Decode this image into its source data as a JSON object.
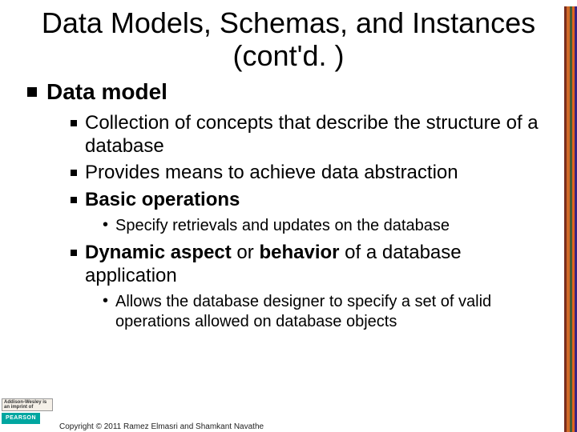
{
  "title": "Data Models, Schemas, and Instances (cont'd. )",
  "body": {
    "l1_0": "Data model",
    "l2_0": "Collection of concepts that describe the structure of a database",
    "l2_1": "Provides means to achieve data abstraction",
    "l2_2_bold": "Basic operations",
    "l3_0": "Specify retrievals and updates on the database",
    "l2_3_b1": "Dynamic aspect",
    "l2_3_mid": " or ",
    "l2_3_b2": "behavior",
    "l2_3_tail": " of a database application",
    "l3_1": "Allows the database designer to specify a set of valid operations allowed on database objects"
  },
  "copyright": "Copyright © 2011 Ramez Elmasri and Shamkant Navathe",
  "logo_aw": "Addison-Wesley is an imprint of",
  "logo_pearson": "PEARSON",
  "stripes": {
    "c1": "#7a2e1e",
    "c2": "#d06a28",
    "c3": "#455f36",
    "c4": "#e0641e",
    "c5": "#3a2482"
  },
  "style": {
    "background": "#ffffff",
    "title_fontsize": 36,
    "l1_fontsize": 28,
    "l2_fontsize": 24,
    "l3_fontsize": 20,
    "text_color": "#000000",
    "font_family": "Arial"
  }
}
